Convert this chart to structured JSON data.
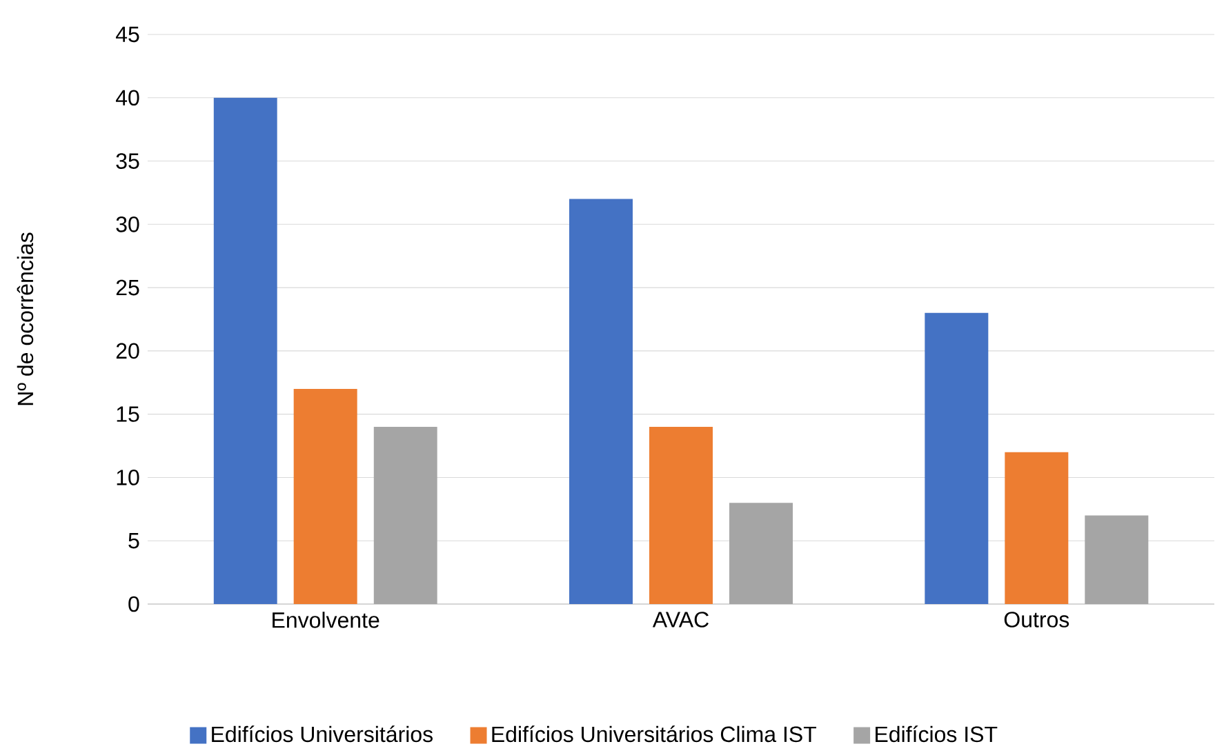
{
  "chart_data": {
    "type": "bar",
    "ylabel": "Nº de ocorrências",
    "categories": [
      "Envolvente",
      "AVAC",
      "Outros"
    ],
    "series": [
      {
        "name": "Edifícios Universitários",
        "color": "#4472c4",
        "values": [
          40,
          32,
          23
        ]
      },
      {
        "name": "Edifícios Universitários Clima IST",
        "color": "#ed7d31",
        "values": [
          17,
          14,
          12
        ]
      },
      {
        "name": "Edifícios IST",
        "color": "#a5a5a5",
        "values": [
          14,
          8,
          7
        ]
      }
    ],
    "ylim": [
      0,
      45
    ],
    "yticks": [
      0,
      5,
      10,
      15,
      20,
      25,
      30,
      35,
      40,
      45
    ],
    "grid": "y",
    "legend": "bottom"
  }
}
